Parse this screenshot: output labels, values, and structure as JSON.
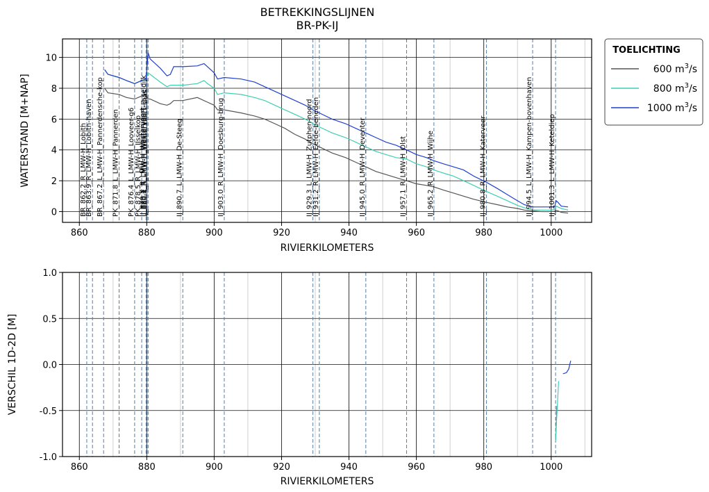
{
  "figure": {
    "title_line1": "BETREKKINGSLIJNEN",
    "title_line2": "BR-PK-IJ"
  },
  "legend": {
    "title": "TOELICHTING",
    "entries": [
      {
        "prefix": "600 m",
        "sup": "3",
        "suffix": "/s",
        "color": "#555555"
      },
      {
        "prefix": "800 m",
        "sup": "3",
        "suffix": "/s",
        "color": "#3ecfb0"
      },
      {
        "prefix": "1000 m",
        "sup": "3",
        "suffix": "/s",
        "color": "#1f3fd0"
      }
    ]
  },
  "chart_data": [
    {
      "type": "line",
      "xlabel": "RIVIERKILOMETERS",
      "ylabel": "WATERSTAND [M+NAP]",
      "xlim": [
        855,
        1012
      ],
      "ylim": [
        -0.7,
        11.2
      ],
      "xticks": [
        860,
        880,
        900,
        920,
        940,
        960,
        980,
        1000
      ],
      "xtick_labels": [
        "860",
        "880",
        "900",
        "920",
        "940",
        "960",
        "980",
        "1000"
      ],
      "yticks": [
        0,
        2,
        4,
        6,
        8,
        10
      ],
      "ytick_labels": [
        "0",
        "2",
        "4",
        "6",
        "8",
        "10"
      ],
      "grid": true,
      "stations": [
        {
          "km": 862.2,
          "label": "BR_862.2_R_LMW-H_Lobith"
        },
        {
          "km": 863.9,
          "label": "BR_863.9_R_LMW-H_Lobith-haven"
        },
        {
          "km": 867.2,
          "label": "BR_867.2_L_LMW-H_Pannerdensche-kop"
        },
        {
          "km": 871.8,
          "label": "PK_871.8_L_LMW-H_Pannerden"
        },
        {
          "km": 876.4,
          "label": "PK_876.4_L_LMW-H_Looveer-g6"
        },
        {
          "km": 878.5,
          "label": "PK_878.5_R_LMW-H_IJsselkop"
        },
        {
          "km": 879.8,
          "label": "IJ_879.8_R_LMW-H_Westervoort"
        },
        {
          "km": 880.1,
          "label": "IJ_880.1_R_LMW-H_Westervoort-IJsseldijk"
        },
        {
          "km": 880.4,
          "label": "IJ_880.4_R_LMW-H_Westervoort-sluis"
        },
        {
          "km": 890.7,
          "label": "IJ_890.7_L_LMW-H_De-Steeg"
        },
        {
          "km": 903.0,
          "label": "IJ_903.0_R_LMW-H_Doesburg-brug"
        },
        {
          "km": 929.3,
          "label": "IJ_929.3_L_LMW-H_Zutphen-noord"
        },
        {
          "km": 931.2,
          "label": "IJ_931.2_R_LMW-H_Eefde-beneden"
        },
        {
          "km": 945.0,
          "label": "IJ_945.0_R_LMW-H_Deventer"
        },
        {
          "km": 957.1,
          "label": "IJ_957.1_R_LMW-H_Olst"
        },
        {
          "km": 965.2,
          "label": "IJ_965.2_R_LMW-H_Wijhe"
        },
        {
          "km": 980.8,
          "label": "IJ_980.8_R_LMW-H_Katerveer"
        },
        {
          "km": 994.5,
          "label": "IJ_994.5_L_LMW-H_Kampen-bovenhaven"
        },
        {
          "km": 1001.3,
          "label": "IJ_1001.3_L_LMW-H_Keteldiep"
        }
      ],
      "series": [
        {
          "name": "600 m³/s",
          "color": "#555555",
          "x": [
            867.5,
            868.5,
            871.8,
            874,
            876.4,
            878.5,
            879.8,
            880.4,
            881,
            884,
            886,
            887,
            888,
            890.7,
            895,
            898,
            900,
            901,
            903,
            908,
            912,
            915,
            918,
            921,
            924,
            927,
            929.3,
            931.2,
            935,
            939,
            942,
            945,
            948,
            951,
            954,
            957.1,
            960,
            963,
            965.2,
            968,
            971,
            974,
            977,
            980.8,
            984,
            987,
            990,
            992,
            994.5,
            997,
            1000,
            1001,
            1001.5,
            1002,
            1003,
            1005
          ],
          "y": [
            8.0,
            7.7,
            7.6,
            7.4,
            7.3,
            7.5,
            7.6,
            7.3,
            7.3,
            7.0,
            6.9,
            7.0,
            7.2,
            7.2,
            7.4,
            7.1,
            6.9,
            6.6,
            6.6,
            6.4,
            6.2,
            6.0,
            5.7,
            5.4,
            5.0,
            4.7,
            4.4,
            4.2,
            3.8,
            3.5,
            3.2,
            2.9,
            2.6,
            2.4,
            2.2,
            2.0,
            1.8,
            1.7,
            1.6,
            1.4,
            1.2,
            1.0,
            0.8,
            0.6,
            0.45,
            0.3,
            0.2,
            0.1,
            0.05,
            0.0,
            0.0,
            0.02,
            0.08,
            0.05,
            -0.05,
            -0.1
          ]
        },
        {
          "name": "800 m³/s",
          "color": "#3ecfb0",
          "x": [
            867.5,
            868.5,
            871.8,
            874,
            876.4,
            878.5,
            879.8,
            880.4,
            881,
            884,
            886,
            887,
            888,
            890.7,
            895,
            897,
            898,
            900,
            901,
            903,
            908,
            912,
            915,
            918,
            921,
            924,
            927,
            929.3,
            931.2,
            935,
            939,
            942,
            945,
            948,
            951,
            954,
            957.1,
            960,
            963,
            965.2,
            968,
            971,
            974,
            977,
            980.8,
            984,
            987,
            990,
            992,
            994.5,
            997,
            1000,
            1001,
            1001.5,
            1002,
            1003,
            1005
          ],
          "y": [
            9.2,
            8.9,
            8.7,
            8.5,
            8.3,
            8.5,
            8.6,
            9.0,
            8.9,
            8.4,
            8.1,
            8.2,
            8.2,
            8.2,
            8.3,
            8.5,
            8.3,
            8.0,
            7.6,
            7.7,
            7.6,
            7.4,
            7.2,
            6.9,
            6.6,
            6.3,
            6.0,
            5.7,
            5.5,
            5.1,
            4.8,
            4.5,
            4.2,
            3.9,
            3.7,
            3.5,
            3.4,
            3.1,
            2.9,
            2.7,
            2.5,
            2.3,
            2.0,
            1.7,
            1.3,
            1.0,
            0.7,
            0.4,
            0.25,
            0.12,
            0.1,
            0.1,
            0.15,
            0.35,
            0.3,
            0.2,
            0.1
          ]
        },
        {
          "name": "1000 m³/s",
          "color": "#1f3fd0",
          "x": [
            867.5,
            868.5,
            871.8,
            874,
            876.4,
            878.5,
            879.8,
            880.4,
            881,
            884,
            886,
            887,
            888,
            890.7,
            895,
            897,
            898,
            900,
            901,
            903,
            908,
            912,
            915,
            918,
            921,
            924,
            927,
            929.3,
            931.2,
            935,
            939,
            942,
            945,
            948,
            951,
            954,
            957.1,
            960,
            963,
            965.2,
            968,
            971,
            974,
            977,
            980.8,
            984,
            987,
            990,
            992,
            994.5,
            997,
            1000,
            1001,
            1001.5,
            1002,
            1003,
            1005
          ],
          "y": [
            9.2,
            8.9,
            8.7,
            8.5,
            8.3,
            8.5,
            8.6,
            10.3,
            9.9,
            9.3,
            8.8,
            8.9,
            9.4,
            9.4,
            9.45,
            9.6,
            9.4,
            9.0,
            8.6,
            8.7,
            8.6,
            8.4,
            8.1,
            7.8,
            7.5,
            7.2,
            6.9,
            6.6,
            6.4,
            6.0,
            5.7,
            5.4,
            5.1,
            4.8,
            4.5,
            4.3,
            4.0,
            3.7,
            3.5,
            3.3,
            3.1,
            2.9,
            2.7,
            2.3,
            1.9,
            1.5,
            1.1,
            0.7,
            0.45,
            0.3,
            0.3,
            0.3,
            0.3,
            0.7,
            0.6,
            0.35,
            0.3
          ]
        }
      ]
    },
    {
      "type": "line",
      "xlabel": "RIVIERKILOMETERS",
      "ylabel": "VERSCHIL 1D-2D [M]",
      "xlim": [
        855,
        1012
      ],
      "ylim": [
        -1.0,
        1.0
      ],
      "xticks": [
        860,
        880,
        900,
        920,
        940,
        960,
        980,
        1000
      ],
      "xtick_labels": [
        "860",
        "880",
        "900",
        "920",
        "940",
        "960",
        "980",
        "1000"
      ],
      "yticks": [
        -1.0,
        -0.5,
        0.0,
        0.5,
        1.0
      ],
      "ytick_labels": [
        "-1.0",
        "-0.5",
        "0.0",
        "0.5",
        "1.0"
      ],
      "grid": true,
      "series": [
        {
          "name": "600 m³/s",
          "color": "#555555",
          "x": [
            1001.3,
            1001.7
          ],
          "y": [
            -0.82,
            -0.45
          ]
        },
        {
          "name": "800 m³/s",
          "color": "#3ecfb0",
          "x": [
            1001.3,
            1001.6,
            1001.9,
            1002.2
          ],
          "y": [
            -0.83,
            -0.6,
            -0.4,
            -0.18
          ]
        },
        {
          "name": "1000 m³/s",
          "color": "#1f3fd0",
          "x": [
            1003.5,
            1004.5,
            1005.2,
            1005.5,
            1005.8
          ],
          "y": [
            -0.1,
            -0.09,
            -0.05,
            0.0,
            0.04
          ]
        }
      ]
    }
  ]
}
